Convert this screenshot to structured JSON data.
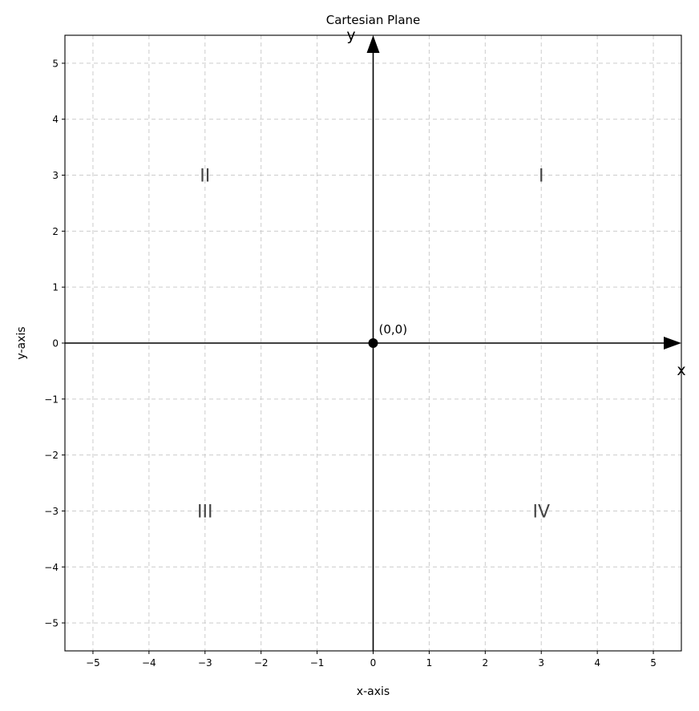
{
  "chart_data": {
    "type": "scatter",
    "title": "Cartesian Plane",
    "xlabel": "x-axis",
    "ylabel": "y-axis",
    "xlim": [
      -5.5,
      5.5
    ],
    "ylim": [
      -5.5,
      5.5
    ],
    "xticks": [
      -5,
      -4,
      -3,
      -2,
      -1,
      0,
      1,
      2,
      3,
      4,
      5
    ],
    "yticks": [
      -5,
      -4,
      -3,
      -2,
      -1,
      0,
      1,
      2,
      3,
      4,
      5
    ],
    "tick_labels": [
      "−5",
      "−4",
      "−3",
      "−2",
      "−1",
      "0",
      "1",
      "2",
      "3",
      "4",
      "5"
    ],
    "grid": true,
    "axis_arrows": {
      "x_label": "x",
      "y_label": "y"
    },
    "points": [
      {
        "x": 0,
        "y": 0,
        "label": "(0,0)"
      }
    ],
    "quadrants": [
      {
        "label": "I",
        "x": 3,
        "y": 3
      },
      {
        "label": "II",
        "x": -3,
        "y": 3
      },
      {
        "label": "III",
        "x": -3,
        "y": -3
      },
      {
        "label": "IV",
        "x": 3,
        "y": -3
      }
    ],
    "colors": {
      "axes": "#000000",
      "grid": "#cccccc",
      "point": "#000000",
      "quadrant_text": "#444444"
    }
  }
}
